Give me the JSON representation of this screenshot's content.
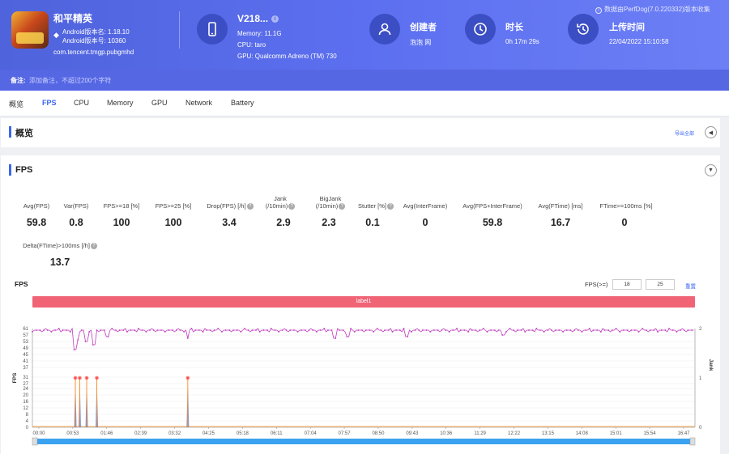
{
  "app": {
    "name": "和平精英",
    "android_version_name": "Android版本名: 1.18.10",
    "android_version_code": "Android版本号: 10360",
    "package": "com.tencent.tmgp.pubgmhd"
  },
  "device": {
    "name": "V218...",
    "memory": "Memory: 11.1G",
    "cpu": "CPU: taro",
    "gpu": "GPU: Qualcomm Adreno (TM) 730"
  },
  "creator": {
    "title": "创建者",
    "value": "泡泡 网"
  },
  "duration": {
    "title": "时长",
    "value": "0h 17m 29s"
  },
  "upload": {
    "title": "上传时间",
    "value": "22/04/2022 15:10:58"
  },
  "perfdog_note": "数据由PerfDog(7.0.220332)版本收集",
  "note": {
    "label": "备注:",
    "placeholder": "添加备注，不超过200个字符"
  },
  "tabs": [
    "概览",
    "FPS",
    "CPU",
    "Memory",
    "GPU",
    "Network",
    "Battery"
  ],
  "active_tab": "FPS",
  "overview": {
    "title": "概览",
    "export_label": "导出全部"
  },
  "fps_section": {
    "title": "FPS",
    "stats": [
      {
        "label": "Avg(FPS)",
        "value": "59.8"
      },
      {
        "label": "Var(FPS)",
        "value": "0.8"
      },
      {
        "label": "FPS>=18 [%]",
        "value": "100"
      },
      {
        "label": "FPS>=25 [%]",
        "value": "100"
      },
      {
        "label": "Drop(FPS) [/h]",
        "value": "3.4",
        "help": true
      },
      {
        "label_line1": "Jank",
        "label_line2": "(/10min)",
        "value": "2.9",
        "help": true
      },
      {
        "label_line1": "BigJank",
        "label_line2": "(/10min)",
        "value": "2.3",
        "help": true
      },
      {
        "label": "Stutter [%]",
        "value": "0.1",
        "help": true
      },
      {
        "label": "Avg(InterFrame)",
        "value": "0"
      },
      {
        "label": "Avg(FPS+InterFrame)",
        "value": "59.8"
      },
      {
        "label": "Avg(FTime) [ms]",
        "value": "16.7"
      },
      {
        "label": "FTime>=100ms [%]",
        "value": "0"
      },
      {
        "label": "Delta(FTime)>100ms [/h]",
        "value": "13.7",
        "help": true
      }
    ],
    "chart_header": "FPS",
    "fps_threshold_label": "FPS(>=)",
    "threshold_1": "18",
    "threshold_2": "25",
    "reset_label": "重置",
    "label_band": "label1"
  },
  "chart_data": {
    "type": "line",
    "ylabel": "FPS",
    "y2label": "Jank",
    "ylim": [
      0,
      61
    ],
    "y2lim": [
      0,
      2
    ],
    "yticks": [
      "0",
      "4",
      "8",
      "12",
      "16",
      "20",
      "24",
      "27",
      "31",
      "37",
      "41",
      "45",
      "49",
      "53",
      "57",
      "61"
    ],
    "y2ticks": [
      "0",
      "1",
      "2"
    ],
    "xticks": [
      "00:00",
      "00:53",
      "01:46",
      "02:39",
      "03:32",
      "04:25",
      "05:18",
      "06:11",
      "07:04",
      "07:57",
      "08:50",
      "09:43",
      "10:36",
      "11:29",
      "12:22",
      "13:15",
      "14:08",
      "15:01",
      "15:54",
      "16:47"
    ],
    "duration_seconds": 1049,
    "fps_baseline": 60,
    "fps_drops": [
      {
        "t": 67,
        "fps": 48
      },
      {
        "t": 72,
        "fps": 54
      },
      {
        "t": 86,
        "fps": 53
      },
      {
        "t": 98,
        "fps": 51
      },
      {
        "t": 118,
        "fps": 56
      },
      {
        "t": 246,
        "fps": 55
      },
      {
        "t": 479,
        "fps": 55
      },
      {
        "t": 499,
        "fps": 56
      },
      {
        "t": 593,
        "fps": 56
      },
      {
        "t": 745,
        "fps": 57
      }
    ],
    "jank_events": [
      {
        "t": 68,
        "jank": 1
      },
      {
        "t": 75,
        "jank": 1
      },
      {
        "t": 86,
        "jank": 1
      },
      {
        "t": 102,
        "jank": 1
      },
      {
        "t": 246,
        "jank": 1
      }
    ],
    "colors": {
      "fps": "#c13bc0",
      "jank": "#ff8c1a",
      "bigjank_marker": "#ff4444",
      "stutter": "#5b7fd8",
      "scrollbar": "#3aa2f0"
    }
  }
}
